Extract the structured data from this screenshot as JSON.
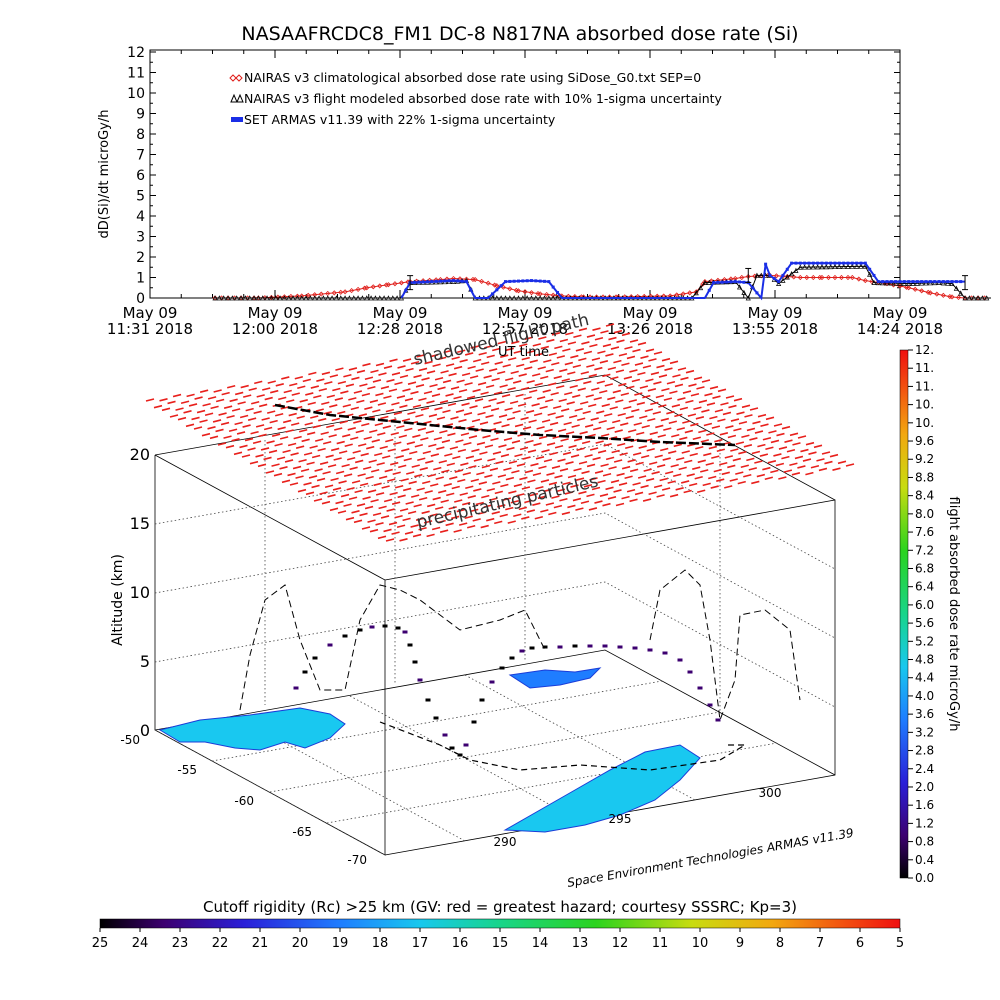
{
  "title": "NASAAFRCDC8_FM1 DC-8   N817NA absorbed dose rate (Si)",
  "top_plot": {
    "ylabel": "dD(Si)/dt microGy/h",
    "y_ticks": [
      "0",
      "1",
      "2",
      "3",
      "4",
      "5",
      "6",
      "7",
      "8",
      "9",
      "10",
      "11",
      "12"
    ],
    "x_ticks": [
      {
        "date": "May 09",
        "time": "11:31 2018"
      },
      {
        "date": "May 09",
        "time": "12:00 2018"
      },
      {
        "date": "May 09",
        "time": "12:28 2018"
      },
      {
        "date": "May 09",
        "time": "12:57 2018"
      },
      {
        "date": "May 09",
        "time": "13:26 2018"
      },
      {
        "date": "May 09",
        "time": "13:55 2018"
      },
      {
        "date": "May 09",
        "time": "14:24 2018"
      }
    ],
    "legend": [
      {
        "label": "NAIRAS v3 climatological absorbed dose rate using SiDose_G0.txt SEP=0",
        "color": "#e0201c"
      },
      {
        "label": "NAIRAS v3 flight modeled absorbed dose rate with 10% 1-sigma uncertainty",
        "color": "#000000"
      },
      {
        "label": "SET ARMAS v11.39 with 22% 1-sigma uncertainty",
        "color": "#1a2ee6"
      }
    ]
  },
  "chart_data": [
    {
      "type": "line",
      "title": "NASAAFRCDC8_FM1 DC-8   N817NA absorbed dose rate (Si)",
      "xlabel": "UT time",
      "ylabel": "dD(Si)/dt microGy/h",
      "ylim": [
        0,
        12
      ],
      "x_unit": "minutes after 11:31 UT, May 09 2018",
      "series": [
        {
          "name": "NAIRAS v3 climatological absorbed dose rate using SiDose_G0.txt SEP=0",
          "x": [
            15,
            25,
            35,
            45,
            50,
            55,
            60,
            67,
            70,
            75,
            80,
            85,
            90,
            95,
            100,
            108,
            120,
            126,
            128,
            135,
            138,
            143,
            147,
            150,
            155,
            162,
            165,
            170,
            175,
            180,
            185,
            188,
            194
          ],
          "y": [
            0.0,
            0.0,
            0.1,
            0.3,
            0.5,
            0.65,
            0.8,
            0.9,
            0.95,
            0.9,
            0.6,
            0.35,
            0.2,
            0.1,
            0.05,
            0.05,
            0.1,
            0.3,
            0.8,
            0.95,
            1.05,
            1.1,
            1.05,
            1.0,
            1.0,
            1.0,
            0.85,
            0.7,
            0.5,
            0.25,
            0.05,
            0.0,
            0.0
          ]
        },
        {
          "name": "NAIRAS v3 flight modeled absorbed dose rate with 10% 1-sigma uncertainty",
          "x": [
            15,
            58,
            60,
            70,
            73,
            75,
            92,
            100,
            120,
            125,
            128,
            135,
            138,
            140,
            143,
            145,
            150,
            165,
            167,
            175,
            182,
            185,
            188,
            194
          ],
          "y": [
            0.0,
            0.0,
            0.75,
            0.8,
            0.85,
            0.0,
            0.0,
            0.0,
            0.0,
            0.0,
            0.75,
            0.8,
            0.0,
            1.1,
            1.1,
            0.7,
            1.5,
            1.55,
            0.75,
            0.7,
            0.75,
            0.7,
            0.0,
            0.0
          ]
        },
        {
          "name": "SET ARMAS v11.39 with 22% 1-sigma uncertainty",
          "x": [
            58,
            60,
            65,
            70,
            73,
            75,
            78,
            82,
            88,
            92,
            95,
            128,
            130,
            135,
            138,
            141,
            142,
            143,
            145,
            148,
            150,
            155,
            160,
            165,
            166,
            168,
            172,
            178,
            185,
            188
          ],
          "y": [
            0.0,
            0.75,
            0.8,
            0.85,
            0.8,
            0.0,
            0.0,
            0.8,
            0.85,
            0.8,
            0.0,
            0.0,
            0.75,
            0.8,
            0.75,
            0.0,
            1.65,
            1.1,
            0.8,
            1.7,
            1.7,
            1.7,
            1.7,
            1.7,
            1.4,
            0.8,
            0.8,
            0.8,
            0.8,
            0.8
          ]
        }
      ]
    },
    {
      "type": "scatter",
      "subtype": "3d-flight-path",
      "zlabel": "Altitude (km)",
      "z_ticks": [
        "0",
        "5",
        "10",
        "15",
        "20"
      ],
      "lat_ticks": [
        "-50",
        "-55",
        "-60",
        "-65",
        "-70"
      ],
      "lon_ticks": [
        "290",
        "295",
        "300"
      ],
      "annotations": [
        "shadowed flight path",
        "precipitating particles",
        "UT time"
      ],
      "colorbar": {
        "label": "flight absorbed dose rate microGy/h",
        "ticks": [
          "0.0",
          "0.4",
          "0.8",
          "1.2",
          "1.6",
          "2.0",
          "2.4",
          "2.8",
          "3.2",
          "3.6",
          "4.0",
          "4.4",
          "4.8",
          "5.2",
          "5.6",
          "6.0",
          "6.4",
          "6.8",
          "7.2",
          "7.6",
          "8.0",
          "8.4",
          "8.8",
          "9.2",
          "9.6",
          "10.",
          "10.",
          "11.",
          "11.",
          "12."
        ]
      },
      "bottom_colorbar": {
        "label": "Cutoff rigidity (Rc) >25 km (GV: red = greatest hazard; courtesy SSSRC; Kp=3)",
        "ticks": [
          "25",
          "24",
          "23",
          "22",
          "21",
          "20",
          "19",
          "18",
          "17",
          "16",
          "15",
          "14",
          "13",
          "12",
          "11",
          "10",
          "9",
          "8",
          "7",
          "6",
          "5"
        ]
      },
      "credit": "Space Environment Technologies ARMAS v11.39"
    }
  ]
}
